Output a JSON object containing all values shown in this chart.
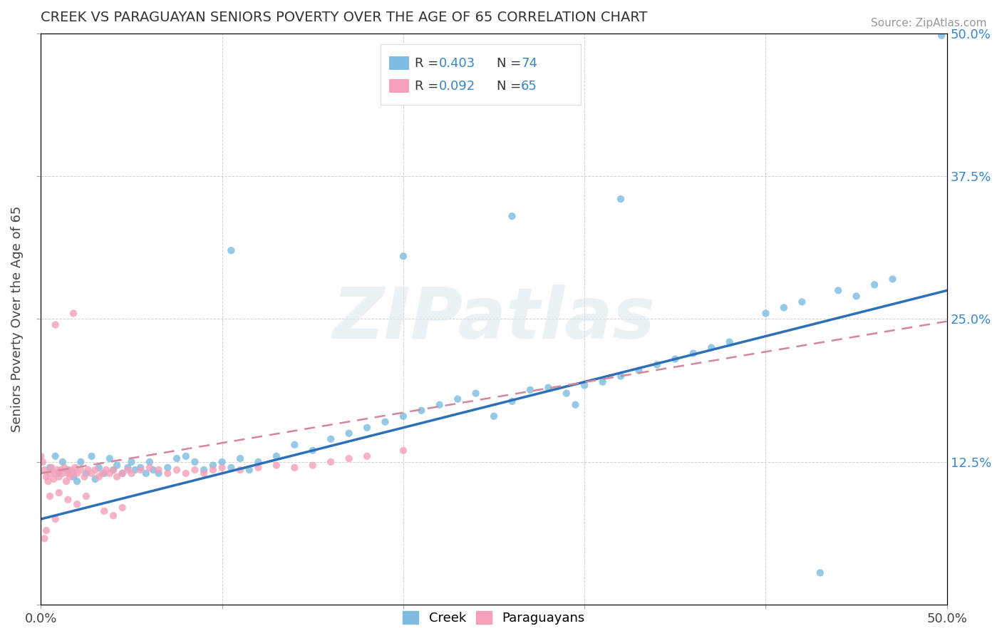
{
  "title": "CREEK VS PARAGUAYAN SENIORS POVERTY OVER THE AGE OF 65 CORRELATION CHART",
  "source": "Source: ZipAtlas.com",
  "ylabel": "Seniors Poverty Over the Age of 65",
  "xlim": [
    0.0,
    0.5
  ],
  "ylim": [
    0.0,
    0.5
  ],
  "creek_color": "#7bbce0",
  "paraguayan_color": "#f4a0b8",
  "creek_line_color": "#2e6fba",
  "paraguayan_line_color": "#d4869a",
  "right_axis_color": "#3a86c8",
  "watermark_text": "ZIPatlas",
  "creek_line_start_y": 0.075,
  "creek_line_end_y": 0.275,
  "para_line_start_y": 0.115,
  "para_line_end_y": 0.248,
  "creek_x": [
    0.005,
    0.008,
    0.01,
    0.012,
    0.015,
    0.018,
    0.02,
    0.022,
    0.025,
    0.028,
    0.03,
    0.032,
    0.035,
    0.038,
    0.04,
    0.042,
    0.045,
    0.048,
    0.05,
    0.052,
    0.055,
    0.058,
    0.06,
    0.062,
    0.065,
    0.07,
    0.075,
    0.08,
    0.085,
    0.09,
    0.095,
    0.1,
    0.105,
    0.11,
    0.115,
    0.12,
    0.13,
    0.14,
    0.15,
    0.16,
    0.17,
    0.18,
    0.19,
    0.2,
    0.21,
    0.22,
    0.23,
    0.24,
    0.25,
    0.26,
    0.27,
    0.28,
    0.29,
    0.3,
    0.31,
    0.32,
    0.33,
    0.34,
    0.35,
    0.36,
    0.37,
    0.4,
    0.42,
    0.44,
    0.295,
    0.38,
    0.41,
    0.45,
    0.46,
    0.47,
    0.105,
    0.32,
    0.43,
    0.497
  ],
  "creek_y": [
    0.12,
    0.13,
    0.115,
    0.125,
    0.118,
    0.112,
    0.108,
    0.125,
    0.115,
    0.13,
    0.11,
    0.12,
    0.115,
    0.128,
    0.118,
    0.122,
    0.115,
    0.12,
    0.125,
    0.118,
    0.12,
    0.115,
    0.125,
    0.118,
    0.115,
    0.12,
    0.128,
    0.13,
    0.125,
    0.118,
    0.122,
    0.125,
    0.12,
    0.128,
    0.118,
    0.125,
    0.13,
    0.14,
    0.135,
    0.145,
    0.15,
    0.155,
    0.16,
    0.165,
    0.17,
    0.175,
    0.18,
    0.185,
    0.165,
    0.178,
    0.188,
    0.19,
    0.185,
    0.192,
    0.195,
    0.2,
    0.205,
    0.21,
    0.215,
    0.22,
    0.225,
    0.255,
    0.265,
    0.275,
    0.175,
    0.23,
    0.26,
    0.27,
    0.28,
    0.285,
    0.31,
    0.355,
    0.028,
    0.498
  ],
  "para_x": [
    0.0,
    0.001,
    0.002,
    0.003,
    0.004,
    0.005,
    0.006,
    0.007,
    0.008,
    0.009,
    0.01,
    0.011,
    0.012,
    0.013,
    0.014,
    0.015,
    0.016,
    0.017,
    0.018,
    0.019,
    0.02,
    0.022,
    0.024,
    0.026,
    0.028,
    0.03,
    0.032,
    0.034,
    0.036,
    0.038,
    0.04,
    0.042,
    0.045,
    0.048,
    0.05,
    0.055,
    0.06,
    0.065,
    0.07,
    0.075,
    0.08,
    0.085,
    0.09,
    0.095,
    0.1,
    0.11,
    0.12,
    0.13,
    0.14,
    0.15,
    0.16,
    0.17,
    0.005,
    0.01,
    0.015,
    0.02,
    0.025,
    0.002,
    0.003,
    0.008,
    0.035,
    0.04,
    0.045,
    0.18,
    0.2
  ],
  "para_y": [
    0.13,
    0.125,
    0.118,
    0.112,
    0.108,
    0.115,
    0.12,
    0.11,
    0.115,
    0.118,
    0.112,
    0.118,
    0.115,
    0.12,
    0.108,
    0.115,
    0.112,
    0.118,
    0.115,
    0.12,
    0.115,
    0.118,
    0.112,
    0.118,
    0.115,
    0.118,
    0.112,
    0.115,
    0.118,
    0.115,
    0.118,
    0.112,
    0.115,
    0.118,
    0.115,
    0.118,
    0.12,
    0.118,
    0.115,
    0.118,
    0.115,
    0.118,
    0.115,
    0.118,
    0.12,
    0.118,
    0.12,
    0.122,
    0.12,
    0.122,
    0.125,
    0.128,
    0.095,
    0.098,
    0.092,
    0.088,
    0.095,
    0.058,
    0.065,
    0.075,
    0.082,
    0.078,
    0.085,
    0.13,
    0.135
  ]
}
